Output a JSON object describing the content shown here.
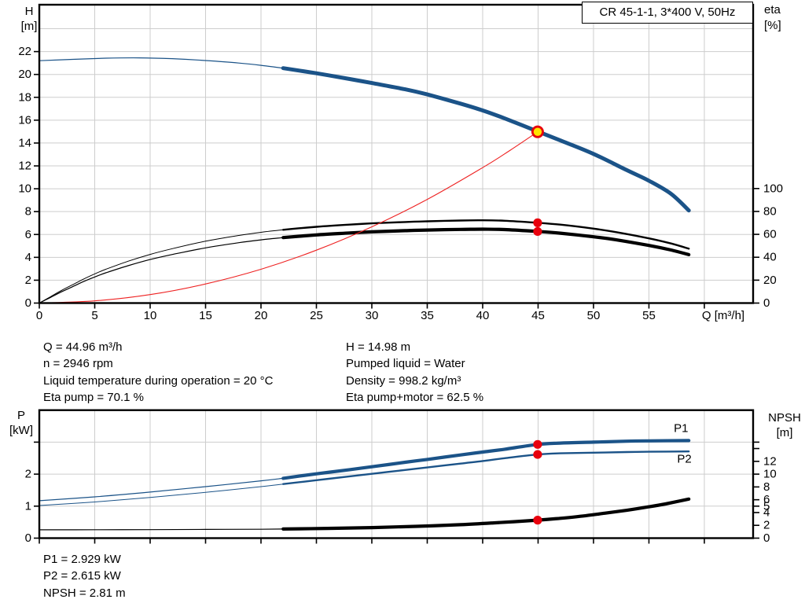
{
  "title_box": {
    "text": "CR 45-1-1, 3*400 V, 50Hz"
  },
  "info_top_left": [
    "Q = 44.96 m³/h",
    "n = 2946 rpm",
    "Liquid temperature during operation = 20 °C",
    "Eta pump = 70.1 %"
  ],
  "info_top_right": [
    "H = 14.98 m",
    "Pumped liquid = Water",
    "Density = 998.2 kg/m³",
    "Eta pump+motor = 62.5 %"
  ],
  "info_bottom": [
    "P1 = 2.929 kW",
    "P2 = 2.615 kW",
    "NPSH = 2.81 m"
  ],
  "colors": {
    "curve_blue": "#1b5388",
    "label_blue": "#2563a8",
    "red": "#e8000d",
    "system_red": "#ee2222",
    "duty_fill": "#ffe400",
    "black": "#000000",
    "grid": "#cdcdcd",
    "axis": "#000000"
  },
  "chart_data": [
    {
      "id": "hq-chart",
      "type": "line",
      "title": "CR 45-1-1, 3*400 V, 50Hz",
      "xlabel": "Q [m³/h]",
      "x_axis": {
        "range": [
          0,
          64.4
        ],
        "grid": [
          5,
          10,
          15,
          20,
          25,
          30,
          35,
          40,
          45,
          50,
          55,
          60
        ],
        "tick_values": [
          0,
          5,
          10,
          15,
          20,
          25,
          30,
          35,
          40,
          45,
          50,
          55,
          60
        ],
        "tick_labels": [
          "0",
          "5",
          "10",
          "15",
          "20",
          "25",
          "30",
          "35",
          "40",
          "45",
          "50",
          "55",
          ""
        ]
      },
      "left_axis": {
        "label_lines": [
          "H",
          "[m]"
        ],
        "range": [
          0,
          26.1
        ],
        "grid": [
          2,
          4,
          6,
          8,
          10,
          12,
          14,
          16,
          18,
          20,
          22,
          24
        ],
        "tick_values": [
          0,
          2,
          4,
          6,
          8,
          10,
          12,
          14,
          16,
          18,
          20,
          22
        ],
        "tick_labels": [
          "0",
          "2",
          "4",
          "6",
          "8",
          "10",
          "12",
          "14",
          "16",
          "18",
          "20",
          "22"
        ]
      },
      "right_axis": {
        "label_lines": [
          "eta",
          "[%]"
        ],
        "range": [
          0,
          260.5
        ],
        "tick_values": [
          0,
          20,
          40,
          60,
          80,
          100
        ],
        "tick_labels": [
          "0",
          "20",
          "40",
          "60",
          "80",
          "100"
        ]
      },
      "series": [
        {
          "id": "h-curve",
          "name": "H",
          "axis": "left",
          "color": "#1b5388",
          "thin_width": 1.2,
          "thick_width": 5,
          "thick_from": 22,
          "points": [
            [
              0,
              21.2
            ],
            [
              3,
              21.32
            ],
            [
              6,
              21.42
            ],
            [
              9,
              21.45
            ],
            [
              12,
              21.38
            ],
            [
              15,
              21.22
            ],
            [
              18,
              21.0
            ],
            [
              20,
              20.8
            ],
            [
              22,
              20.55
            ],
            [
              25,
              20.1
            ],
            [
              28,
              19.6
            ],
            [
              30,
              19.25
            ],
            [
              33,
              18.7
            ],
            [
              35,
              18.25
            ],
            [
              38,
              17.45
            ],
            [
              40,
              16.85
            ],
            [
              42,
              16.15
            ],
            [
              45,
              15.0
            ],
            [
              47,
              14.23
            ],
            [
              50,
              13.05
            ],
            [
              53,
              11.63
            ],
            [
              55,
              10.7
            ],
            [
              57,
              9.55
            ],
            [
              58.6,
              8.1
            ]
          ]
        },
        {
          "id": "eta-pump-curve",
          "name": "Eta pump",
          "axis": "right",
          "color": "#000000",
          "thin_width": 1,
          "thick_width": 2.4,
          "thick_from": 22,
          "points": [
            [
              0,
              0
            ],
            [
              1,
              5.5
            ],
            [
              2,
              11
            ],
            [
              3,
              16
            ],
            [
              4,
              21
            ],
            [
              5,
              25.5
            ],
            [
              6,
              29.5
            ],
            [
              8,
              36.5
            ],
            [
              10,
              42.5
            ],
            [
              12,
              47.5
            ],
            [
              15,
              54
            ],
            [
              18,
              59
            ],
            [
              20,
              61.8
            ],
            [
              22,
              64
            ],
            [
              25,
              66.6
            ],
            [
              28,
              68.5
            ],
            [
              30,
              69.6
            ],
            [
              33,
              70.8
            ],
            [
              35,
              71.4
            ],
            [
              38,
              72.1
            ],
            [
              40,
              72.3
            ],
            [
              42,
              71.9
            ],
            [
              45,
              70.1
            ],
            [
              47,
              68.5
            ],
            [
              50,
              65
            ],
            [
              52,
              62
            ],
            [
              55,
              56.5
            ],
            [
              57,
              52
            ],
            [
              58.6,
              47.5
            ]
          ]
        },
        {
          "id": "eta-pump-motor-curve",
          "name": "Eta pump+motor",
          "axis": "right",
          "color": "#000000",
          "thin_width": 1.2,
          "thick_width": 4.2,
          "thick_from": 22,
          "points": [
            [
              0,
              0
            ],
            [
              1,
              4.9
            ],
            [
              2,
              9.8
            ],
            [
              3,
              14.3
            ],
            [
              4,
              18.8
            ],
            [
              5,
              22.8
            ],
            [
              6,
              26.4
            ],
            [
              8,
              32.6
            ],
            [
              10,
              38
            ],
            [
              12,
              42.4
            ],
            [
              15,
              48.2
            ],
            [
              18,
              52.7
            ],
            [
              20,
              55.2
            ],
            [
              22,
              57.2
            ],
            [
              25,
              59.5
            ],
            [
              28,
              61.2
            ],
            [
              30,
              62.2
            ],
            [
              33,
              63.2
            ],
            [
              35,
              63.8
            ],
            [
              38,
              64.3
            ],
            [
              40,
              64.5
            ],
            [
              42,
              64.2
            ],
            [
              45,
              62.5
            ],
            [
              47,
              61
            ],
            [
              50,
              57.9
            ],
            [
              52,
              55.3
            ],
            [
              55,
              50.3
            ],
            [
              57,
              46.3
            ],
            [
              58.6,
              42.3
            ]
          ]
        },
        {
          "id": "system-curve",
          "name": "System curve",
          "axis": "left",
          "color": "#ee2222",
          "thin_width": 1.1,
          "thick_width": 1.1,
          "thick_from": null,
          "points": [
            [
              0,
              0
            ],
            [
              5,
              0.19
            ],
            [
              10,
              0.74
            ],
            [
              15,
              1.67
            ],
            [
              20,
              2.96
            ],
            [
              25,
              4.63
            ],
            [
              30,
              6.67
            ],
            [
              35,
              9.07
            ],
            [
              40,
              11.85
            ],
            [
              42.5,
              13.38
            ],
            [
              44.96,
              14.98
            ]
          ]
        }
      ],
      "markers": [
        {
          "id": "duty-point",
          "name": "Duty point",
          "style": "duty",
          "axis": "left",
          "q": 44.96,
          "value": 14.98
        },
        {
          "id": "eta-pump-point",
          "name": "Eta pump = 70.1 %",
          "style": "dot",
          "axis": "right",
          "q": 44.96,
          "value": 70.1
        },
        {
          "id": "eta-pump-motor-point",
          "name": "Eta pump+motor = 62.5 %",
          "style": "dot",
          "axis": "right",
          "q": 44.96,
          "value": 62.5
        }
      ]
    },
    {
      "id": "power-npsh-chart",
      "type": "line",
      "title": "",
      "xlabel": "",
      "x_axis": {
        "range": [
          0,
          64.4
        ],
        "grid": [
          5,
          10,
          15,
          20,
          25,
          30,
          35,
          40,
          45,
          50,
          55,
          60
        ],
        "tick_values": [
          0,
          5,
          10,
          15,
          20,
          25,
          30,
          35,
          40,
          45,
          50,
          55,
          60
        ],
        "tick_labels": [
          "",
          "",
          "",
          "",
          "",
          "",
          "",
          "",
          "",
          "",
          "",
          "",
          ""
        ]
      },
      "left_axis": {
        "label_lines": [
          "P",
          "[kW]"
        ],
        "range": [
          0,
          4
        ],
        "grid": [
          1,
          2,
          3
        ],
        "tick_values": [
          0,
          1,
          2,
          3
        ],
        "tick_labels": [
          "0",
          "1",
          "2",
          ""
        ]
      },
      "right_axis": {
        "label_lines": [
          "NPSH",
          "[m]"
        ],
        "range": [
          0,
          20
        ],
        "tick_values": [
          0,
          2,
          4,
          5,
          6,
          8,
          10,
          12,
          14,
          15
        ],
        "tick_labels": [
          "0",
          "2",
          "4",
          "5",
          "6",
          "8",
          "10",
          "12",
          "",
          ""
        ]
      },
      "series": [
        {
          "id": "p1-curve",
          "name": "P1",
          "axis": "left",
          "color": "#1b5388",
          "thin_width": 1.2,
          "thick_width": 4.2,
          "thick_from": 22,
          "label": "P1",
          "label_at": [
            57.9,
            3.43
          ],
          "points": [
            [
              0,
              1.17
            ],
            [
              5,
              1.29
            ],
            [
              10,
              1.44
            ],
            [
              15,
              1.61
            ],
            [
              20,
              1.79
            ],
            [
              22,
              1.87
            ],
            [
              25,
              2.01
            ],
            [
              28,
              2.14
            ],
            [
              30,
              2.23
            ],
            [
              33,
              2.37
            ],
            [
              35,
              2.46
            ],
            [
              38,
              2.6
            ],
            [
              40,
              2.69
            ],
            [
              42,
              2.78
            ],
            [
              44.96,
              2.929
            ],
            [
              47,
              2.97
            ],
            [
              50,
              3.0
            ],
            [
              53,
              3.03
            ],
            [
              55,
              3.04
            ],
            [
              58.6,
              3.05
            ]
          ]
        },
        {
          "id": "p2-curve",
          "name": "P2",
          "axis": "left",
          "color": "#1b5388",
          "thin_width": 1,
          "thick_width": 2.4,
          "thick_from": 22,
          "label": "P2",
          "label_at": [
            58.2,
            2.47
          ],
          "points": [
            [
              0,
              1.02
            ],
            [
              5,
              1.13
            ],
            [
              10,
              1.27
            ],
            [
              15,
              1.43
            ],
            [
              20,
              1.61
            ],
            [
              22,
              1.69
            ],
            [
              25,
              1.81
            ],
            [
              28,
              1.93
            ],
            [
              30,
              2.01
            ],
            [
              33,
              2.13
            ],
            [
              35,
              2.21
            ],
            [
              38,
              2.33
            ],
            [
              40,
              2.41
            ],
            [
              42,
              2.5
            ],
            [
              44.96,
              2.615
            ],
            [
              47,
              2.65
            ],
            [
              50,
              2.67
            ],
            [
              53,
              2.69
            ],
            [
              55,
              2.7
            ],
            [
              58.6,
              2.71
            ]
          ]
        },
        {
          "id": "npsh-curve",
          "name": "NPSH",
          "axis": "right",
          "color": "#000000",
          "thin_width": 1.2,
          "thick_width": 4.2,
          "thick_from": 22,
          "points": [
            [
              0,
              1.3
            ],
            [
              5,
              1.31
            ],
            [
              10,
              1.33
            ],
            [
              15,
              1.36
            ],
            [
              20,
              1.39
            ],
            [
              22,
              1.42
            ],
            [
              26,
              1.52
            ],
            [
              30,
              1.65
            ],
            [
              34,
              1.84
            ],
            [
              38,
              2.1
            ],
            [
              41,
              2.38
            ],
            [
              44.96,
              2.81
            ],
            [
              47,
              3.1
            ],
            [
              49,
              3.45
            ],
            [
              51,
              3.9
            ],
            [
              53,
              4.35
            ],
            [
              55,
              4.9
            ],
            [
              56.5,
              5.35
            ],
            [
              58.6,
              6.1
            ]
          ]
        }
      ],
      "markers": [
        {
          "id": "p1-point",
          "name": "P1 = 2.929 kW",
          "style": "dot",
          "axis": "left",
          "q": 44.96,
          "value": 2.929
        },
        {
          "id": "p2-point",
          "name": "P2 = 2.615 kW",
          "style": "dot",
          "axis": "left",
          "q": 44.96,
          "value": 2.615
        },
        {
          "id": "npsh-point",
          "name": "NPSH = 2.81 m",
          "style": "dot",
          "axis": "right",
          "q": 44.96,
          "value": 2.81
        }
      ]
    }
  ]
}
